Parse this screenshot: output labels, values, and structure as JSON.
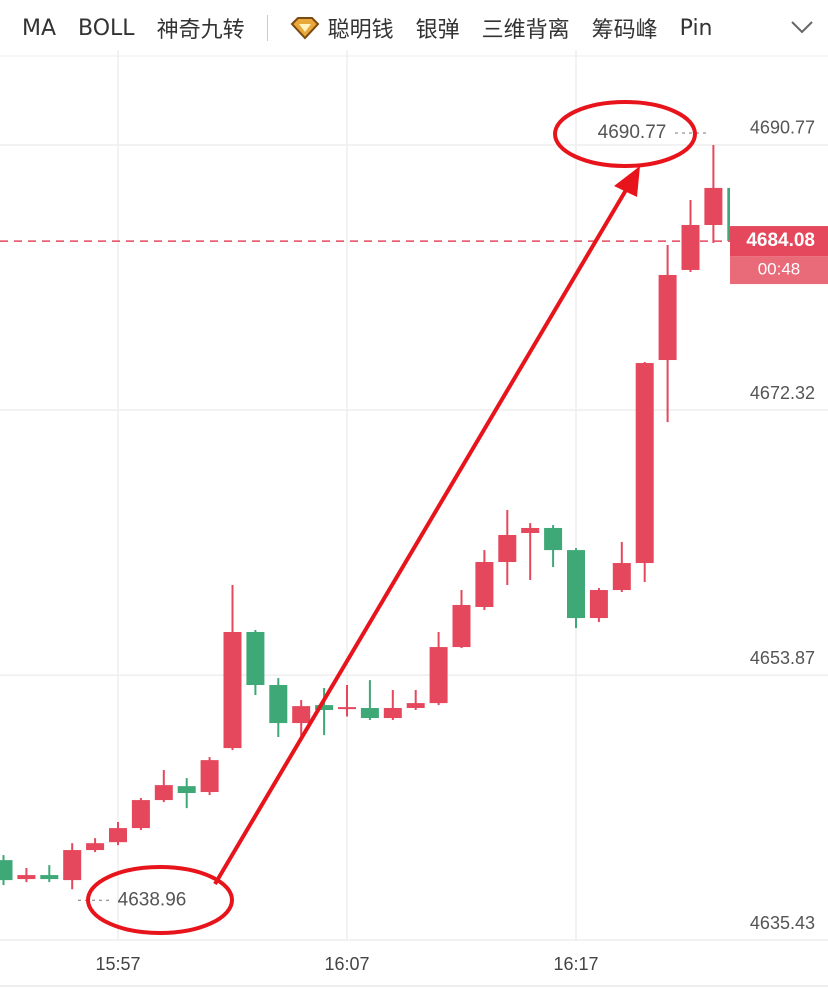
{
  "toolbar": {
    "tabs": [
      "MA",
      "BOLL",
      "神奇九转",
      "聪明钱",
      "银弹",
      "三维背离",
      "筹码峰",
      "Pin"
    ]
  },
  "chart_data": {
    "type": "candlestick",
    "categories": [
      null,
      null,
      null,
      null,
      null,
      "15:57",
      null,
      null,
      null,
      null,
      null,
      null,
      null,
      null,
      null,
      "16:07",
      null,
      null,
      null,
      null,
      null,
      null,
      null,
      null,
      null,
      "16:17",
      null,
      null,
      null,
      null,
      null,
      null,
      null
    ],
    "open": [
      4640.99,
      4639.67,
      4639.95,
      4639.6,
      4641.69,
      4642.24,
      4643.22,
      4645.17,
      4646.14,
      4645.73,
      4648.79,
      4656.87,
      4653.18,
      4650.53,
      4651.78,
      4651.58,
      4651.58,
      4650.88,
      4651.58,
      4651.92,
      4655.82,
      4658.61,
      4661.74,
      4663.76,
      4664.11,
      4662.57,
      4657.84,
      4659.79,
      4661.67,
      4675.8,
      4682.07,
      4685.2,
      4687.78
    ],
    "high": [
      4641.34,
      4640.44,
      4640.64,
      4642.17,
      4642.52,
      4643.64,
      4645.31,
      4647.26,
      4646.7,
      4648.16,
      4660.14,
      4657.01,
      4653.66,
      4652.13,
      4652.97,
      4653.18,
      4653.52,
      4652.83,
      4652.83,
      4656.87,
      4659.79,
      4662.57,
      4665.36,
      4664.45,
      4664.31,
      4662.71,
      4659.93,
      4663.13,
      4675.66,
      4683.81,
      4686.94,
      4690.77,
      4687.98
    ],
    "low": [
      4639.25,
      4639.46,
      4639.46,
      4638.96,
      4641.55,
      4642.03,
      4643.08,
      4645.03,
      4644.61,
      4645.52,
      4648.65,
      4652.48,
      4649.56,
      4649.35,
      4649.69,
      4650.99,
      4650.74,
      4650.74,
      4651.44,
      4651.78,
      4655.75,
      4658.4,
      4660.14,
      4660.49,
      4661.39,
      4657.14,
      4657.56,
      4659.65,
      4660.35,
      4671.48,
      4681.93,
      4683.95,
      4683.9
    ],
    "close": [
      4639.6,
      4639.95,
      4639.67,
      4641.69,
      4642.17,
      4643.22,
      4645.17,
      4646.21,
      4645.66,
      4647.95,
      4656.87,
      4653.18,
      4650.53,
      4651.71,
      4651.44,
      4651.64,
      4650.88,
      4651.58,
      4651.92,
      4655.82,
      4658.75,
      4661.74,
      4663.62,
      4664.11,
      4662.57,
      4657.84,
      4659.79,
      4661.67,
      4675.59,
      4681.72,
      4685.2,
      4687.78,
      4684.08
    ],
    "up_color": "#e5475c",
    "down_color": "#3ea876",
    "ylim": [
      4635.43,
      4697.38
    ],
    "yticks": [
      4635.43,
      4653.87,
      4672.32,
      4690.77
    ],
    "grid": true,
    "high_label": 4690.77,
    "low_label": 4638.96,
    "last_price": 4684.08,
    "countdown": "00:48"
  }
}
